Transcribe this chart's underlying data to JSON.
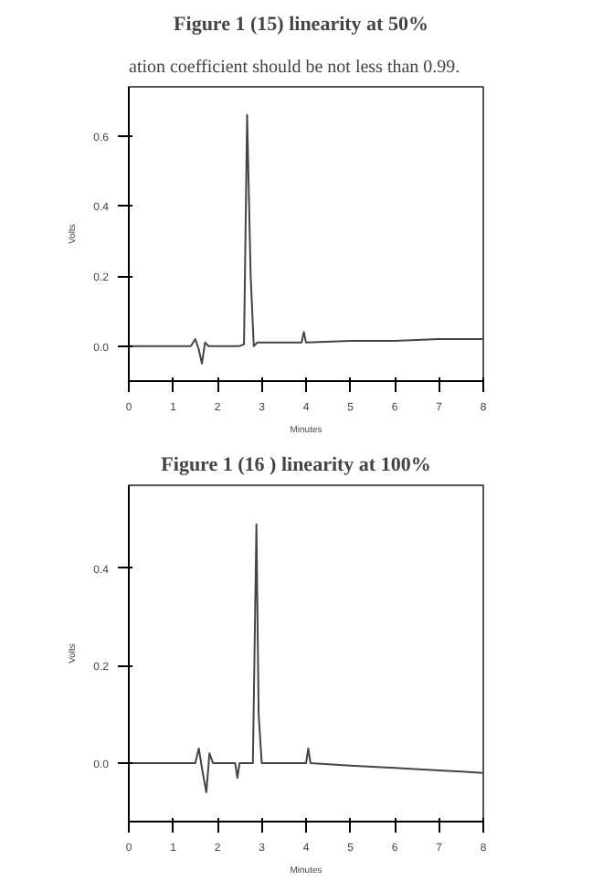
{
  "chart_data": [
    {
      "type": "line",
      "title": "Figure  1 (15)  linearity at 50%",
      "annotations": [
        "ation coefficient should be not less than 0.99."
      ],
      "xlabel": "Minutes",
      "ylabel": "Volts",
      "series": [
        {
          "color": "#444444",
          "x": [
            0,
            1,
            1.4,
            1.5,
            1.58,
            1.65,
            1.72,
            1.8,
            2.0,
            2.5,
            2.6,
            2.67,
            2.75,
            2.82,
            2.9,
            3.5,
            3.9,
            3.95,
            4.0,
            5,
            6,
            7,
            8
          ],
          "values": [
            0.0,
            0.0,
            0.0,
            0.02,
            -0.01,
            -0.05,
            0.01,
            0.0,
            0.0,
            0.0,
            0.005,
            0.66,
            0.2,
            0.0,
            0.01,
            0.01,
            0.01,
            0.04,
            0.01,
            0.015,
            0.015,
            0.02,
            0.02
          ]
        }
      ],
      "xlim": [
        0,
        8
      ],
      "ylim": [
        -0.1,
        0.74
      ],
      "xticks": [
        0,
        1,
        2,
        3,
        4,
        5,
        6,
        7,
        8
      ],
      "yticks": [
        {
          "value": 0,
          "label": "0.0"
        },
        0.2,
        0.4,
        0.6
      ],
      "grid": false,
      "marker": "none",
      "line_style": "solid"
    },
    {
      "type": "line",
      "title": "Figure 1 (16    )  linearity at 100%",
      "xlabel": "Minutes",
      "ylabel": "Volts",
      "series": [
        {
          "color": "#444444",
          "x": [
            0,
            1,
            1.5,
            1.58,
            1.65,
            1.75,
            1.82,
            1.9,
            2.4,
            2.45,
            2.5,
            2.8,
            2.88,
            2.93,
            3.0,
            3.5,
            4.0,
            4.05,
            4.1,
            5,
            6,
            7,
            8
          ],
          "values": [
            0.0,
            0.0,
            0.0,
            0.03,
            -0.01,
            -0.06,
            0.02,
            0.0,
            0.0,
            -0.03,
            0.0,
            0.0,
            0.49,
            0.1,
            0.0,
            0.0,
            0.0,
            0.03,
            0.0,
            -0.005,
            -0.01,
            -0.015,
            -0.02
          ]
        }
      ],
      "xlim": [
        0,
        8
      ],
      "ylim": [
        -0.12,
        0.57
      ],
      "xticks": [
        0,
        1,
        2,
        3,
        4,
        5,
        6,
        7,
        8
      ],
      "yticks": [
        {
          "value": 0,
          "label": "0.0"
        },
        0.2,
        0.4
      ],
      "grid": false,
      "marker": "none",
      "line_style": "solid"
    }
  ]
}
